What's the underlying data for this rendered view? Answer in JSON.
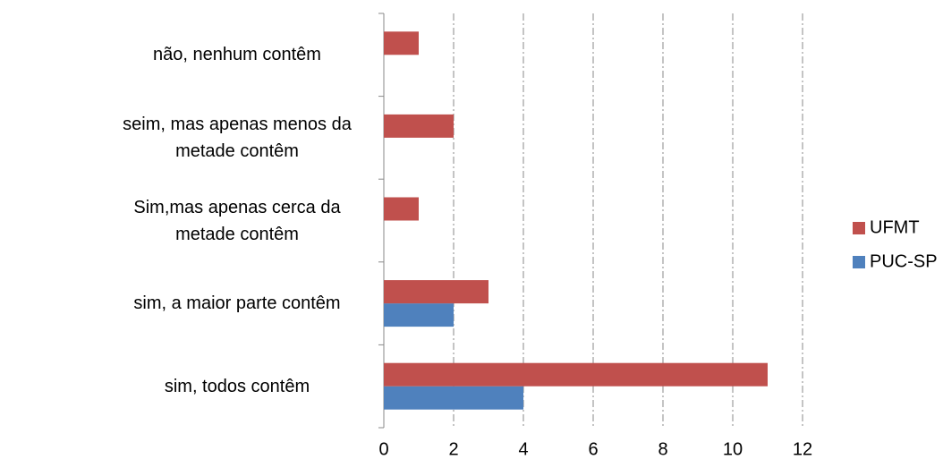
{
  "chart_data": {
    "type": "bar",
    "orientation": "horizontal",
    "categories": [
      "não, nenhum contêm",
      "seim, mas apenas menos da metade contêm",
      "Sim,mas apenas cerca da metade contêm",
      "sim, a maior parte contêm",
      "sim, todos contêm"
    ],
    "series": [
      {
        "name": "PUC-SP",
        "color": "#4f81bd",
        "values": [
          0,
          0,
          0,
          2,
          4
        ]
      },
      {
        "name": "UFMT",
        "color": "#c0504d",
        "values": [
          1,
          2,
          1,
          3,
          11
        ]
      }
    ],
    "xlim": [
      0,
      12
    ],
    "xticks": [
      0,
      2,
      4,
      6,
      8,
      10,
      12
    ],
    "grid": true,
    "legend": "right"
  }
}
